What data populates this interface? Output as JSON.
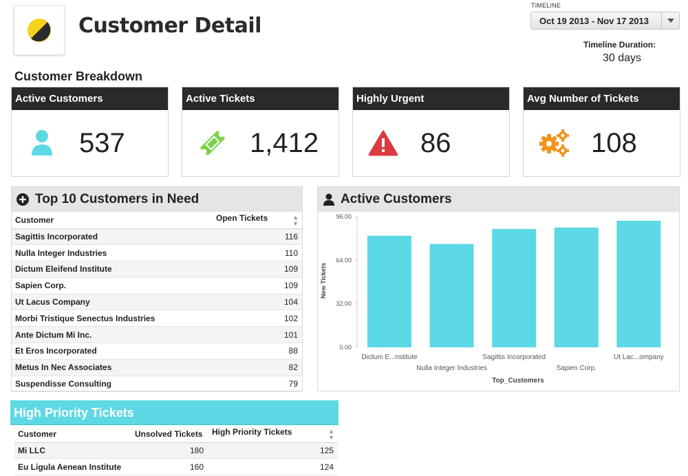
{
  "header": {
    "title": "Customer Detail",
    "timeline_label": "TIMELINE",
    "timeline_value": "Oct 19 2013 - Nov 17 2013",
    "duration_label": "Timeline Duration:",
    "duration_value": "30 days"
  },
  "section_title": "Customer Breakdown",
  "cards": [
    {
      "title": "Active Customers",
      "value": "537",
      "icon": "user-icon",
      "color": "#5dd8e5"
    },
    {
      "title": "Active Tickets",
      "value": "1,412",
      "icon": "ticket-icon",
      "color": "#7bd148"
    },
    {
      "title": "Highly Urgent",
      "value": "86",
      "icon": "warning-icon",
      "color": "#dc3b44"
    },
    {
      "title": "Avg Number of Tickets",
      "value": "108",
      "icon": "gears-icon",
      "color": "#f0941e"
    }
  ],
  "top10": {
    "title": "Top 10 Customers in Need",
    "columns": [
      "Customer",
      "Open Tickets"
    ],
    "rows": [
      [
        "Sagittis Incorporated",
        "116"
      ],
      [
        "Nulla Integer Industries",
        "110"
      ],
      [
        "Dictum Eleifend Institute",
        "109"
      ],
      [
        "Sapien Corp.",
        "109"
      ],
      [
        "Ut Lacus Company",
        "104"
      ],
      [
        "Morbi Tristique Senectus Industries",
        "102"
      ],
      [
        "Ante Dictum Mi Inc.",
        "101"
      ],
      [
        "Et Eros Incorporated",
        "88"
      ],
      [
        "Metus In Nec Associates",
        "82"
      ],
      [
        "Suspendisse Consulting",
        "79"
      ]
    ]
  },
  "active_panel": {
    "title": "Active Customers"
  },
  "chart_data": {
    "type": "bar",
    "categories": [
      "Dictum E...nstitute",
      "Nulla Integer Industries",
      "Sagittis Incorporated",
      "Sapien Corp.",
      "Ut Lac...ompany"
    ],
    "values": [
      82,
      76,
      87,
      88,
      93
    ],
    "xlabel": "Top_Customers",
    "ylabel": "New Tickets",
    "ylim": [
      0,
      96
    ],
    "yticks": [
      "96.00",
      "64.00",
      "32.00",
      "0.00"
    ],
    "ytick_values": [
      96,
      64,
      32,
      0
    ],
    "label_rows": [
      0,
      1,
      0,
      1,
      0
    ],
    "bar_color": "#5dd8e5",
    "grid": false
  },
  "high_priority": {
    "title": "High Priority Tickets",
    "columns": [
      "Customer",
      "Unsolved Tickets",
      "High Priority Tickets"
    ],
    "rows": [
      [
        "Mi LLC",
        "180",
        "125"
      ],
      [
        "Eu Ligula Aenean Institute",
        "160",
        "124"
      ]
    ]
  }
}
